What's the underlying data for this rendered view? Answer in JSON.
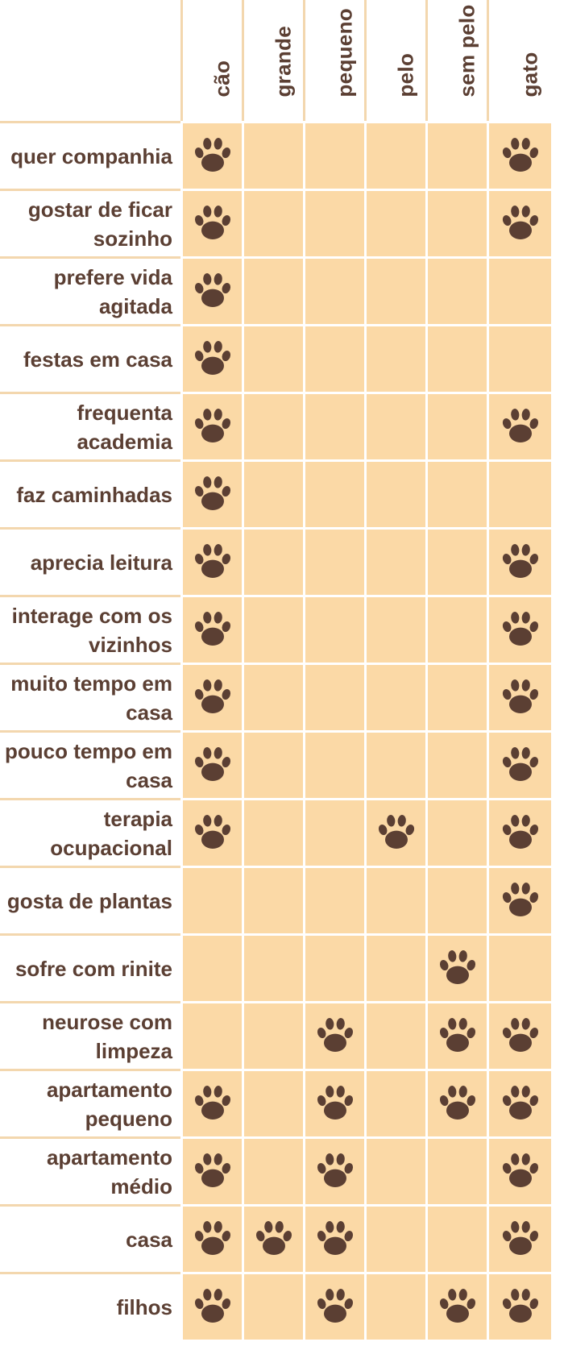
{
  "colors": {
    "cell": "#fbd9a6",
    "paw": "#5b3f33",
    "text": "#5b3f33"
  },
  "icon": "paw-icon",
  "columns": [
    "cão",
    "grande",
    "pequeno",
    "pelo",
    "sem pelo",
    "gato"
  ],
  "rows": [
    {
      "label": "quer companhia",
      "marks": [
        1,
        0,
        0,
        0,
        0,
        1
      ]
    },
    {
      "label": "gostar de ficar sozinho",
      "marks": [
        1,
        0,
        0,
        0,
        0,
        1
      ]
    },
    {
      "label": "prefere vida agitada",
      "marks": [
        1,
        0,
        0,
        0,
        0,
        0
      ]
    },
    {
      "label": "festas em casa",
      "marks": [
        1,
        0,
        0,
        0,
        0,
        0
      ]
    },
    {
      "label": "frequenta academia",
      "marks": [
        1,
        0,
        0,
        0,
        0,
        1
      ]
    },
    {
      "label": "faz caminhadas",
      "marks": [
        1,
        0,
        0,
        0,
        0,
        0
      ]
    },
    {
      "label": "aprecia leitura",
      "marks": [
        1,
        0,
        0,
        0,
        0,
        1
      ]
    },
    {
      "label": "interage com os vizinhos",
      "marks": [
        1,
        0,
        0,
        0,
        0,
        1
      ]
    },
    {
      "label": "muito tempo em casa",
      "marks": [
        1,
        0,
        0,
        0,
        0,
        1
      ]
    },
    {
      "label": "pouco tempo em casa",
      "marks": [
        1,
        0,
        0,
        0,
        0,
        1
      ]
    },
    {
      "label": "terapia ocupacional",
      "marks": [
        1,
        0,
        0,
        1,
        0,
        1
      ]
    },
    {
      "label": "gosta de plantas",
      "marks": [
        0,
        0,
        0,
        0,
        0,
        1
      ]
    },
    {
      "label": "sofre com rinite",
      "marks": [
        0,
        0,
        0,
        0,
        1,
        0
      ]
    },
    {
      "label": "neurose com limpeza",
      "marks": [
        0,
        0,
        1,
        0,
        1,
        1
      ]
    },
    {
      "label": "apartamento pequeno",
      "marks": [
        1,
        0,
        1,
        0,
        1,
        1
      ]
    },
    {
      "label": "apartamento médio",
      "marks": [
        1,
        0,
        1,
        0,
        0,
        1
      ]
    },
    {
      "label": "casa",
      "marks": [
        1,
        1,
        1,
        0,
        0,
        1
      ]
    },
    {
      "label": "filhos",
      "marks": [
        1,
        0,
        1,
        0,
        1,
        1
      ]
    }
  ]
}
